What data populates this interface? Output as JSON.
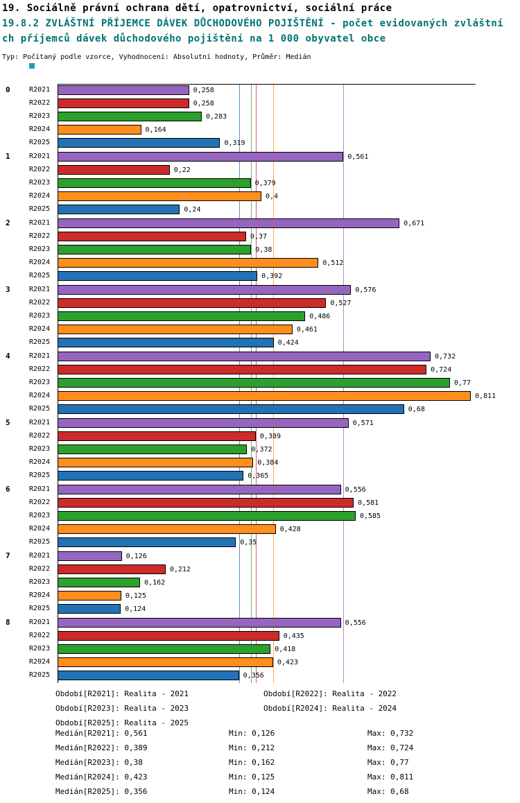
{
  "header": {
    "line1": "19. Sociálně právní ochrana dětí, opatrovnictví, sociální práce",
    "line2": "19.8.2 ZVLÁŠTNÍ PŘÍJEMCE DÁVEK DŮCHODOVÉHO POJIŠTĚNÍ - počet evidovaných zvláštní",
    "line3": "ch příjemců dávek důchodového pojištění na 1 000 obyvatel obce",
    "line4": "Typ: Počítaný podle vzorce, Vyhodnocení: Absolutní hodnoty, Průměr: Medián"
  },
  "colors": {
    "subtitle_teal": "#007272",
    "marker_teal": "#1aa3b0",
    "axis_black": "#000000"
  },
  "chart_data": {
    "type": "bar",
    "orientation": "horizontal",
    "value_format": "czech-decimal-comma",
    "axis": {
      "min": 0,
      "max": 0.82,
      "grid": false
    },
    "categories": [
      "0",
      "1",
      "2",
      "3",
      "4",
      "5",
      "6",
      "7",
      "8"
    ],
    "series": [
      {
        "name": "R2021",
        "color": "#9565bf",
        "values_display": [
          "0,258",
          "0,561",
          "0,671",
          "0,576",
          "0,732",
          "0,571",
          "0,556",
          "0,126",
          "0,556"
        ],
        "median": "0,561",
        "min": "0,126",
        "max": "0,732"
      },
      {
        "name": "R2022",
        "color": "#cd2a2a",
        "values_display": [
          "0,258",
          "0,22",
          "0,37",
          "0,527",
          "0,724",
          "0,389",
          "0,581",
          "0,212",
          "0,435"
        ],
        "median": "0,389",
        "min": "0,212",
        "max": "0,724"
      },
      {
        "name": "R2023",
        "color": "#2ca02c",
        "values_display": [
          "0,283",
          "0,379",
          "0,38",
          "0,486",
          "0,77",
          "0,372",
          "0,585",
          "0,162",
          "0,418"
        ],
        "median": "0,38",
        "min": "0,162",
        "max": "0,77"
      },
      {
        "name": "R2024",
        "color": "#ff8e1c",
        "values_display": [
          "0,164",
          "0,4",
          "0,512",
          "0,461",
          "0,811",
          "0,384",
          "0,428",
          "0,125",
          "0,423"
        ],
        "median": "0,423",
        "min": "0,125",
        "max": "0,811"
      },
      {
        "name": "R2025",
        "color": "#2272b5",
        "values_display": [
          "0,319",
          "0,24",
          "0,392",
          "0,424",
          "0,68",
          "0,365",
          "0,35",
          "0,124",
          "0,356"
        ],
        "median": "0,356",
        "min": "0,124",
        "max": "0,68"
      }
    ]
  },
  "legend_rows": [
    [
      "Období[R2021]: Realita - 2021",
      "Období[R2022]: Realita - 2022"
    ],
    [
      "Období[R2023]: Realita - 2023",
      "Období[R2024]: Realita - 2024"
    ],
    [
      "Období[R2025]: Realita - 2025"
    ]
  ],
  "stats_rows": [
    {
      "median": "Medián[R2021]: 0,561",
      "min": "Min: 0,126",
      "max": "Max: 0,732"
    },
    {
      "median": "Medián[R2022]: 0,389",
      "min": "Min: 0,212",
      "max": "Max: 0,724"
    },
    {
      "median": "Medián[R2023]: 0,38",
      "min": "Min: 0,162",
      "max": "Max: 0,77"
    },
    {
      "median": "Medián[R2024]: 0,423",
      "min": "Min: 0,125",
      "max": "Max: 0,811"
    },
    {
      "median": "Medián[R2025]: 0,356",
      "min": "Min: 0,124",
      "max": "Max: 0,68"
    }
  ]
}
